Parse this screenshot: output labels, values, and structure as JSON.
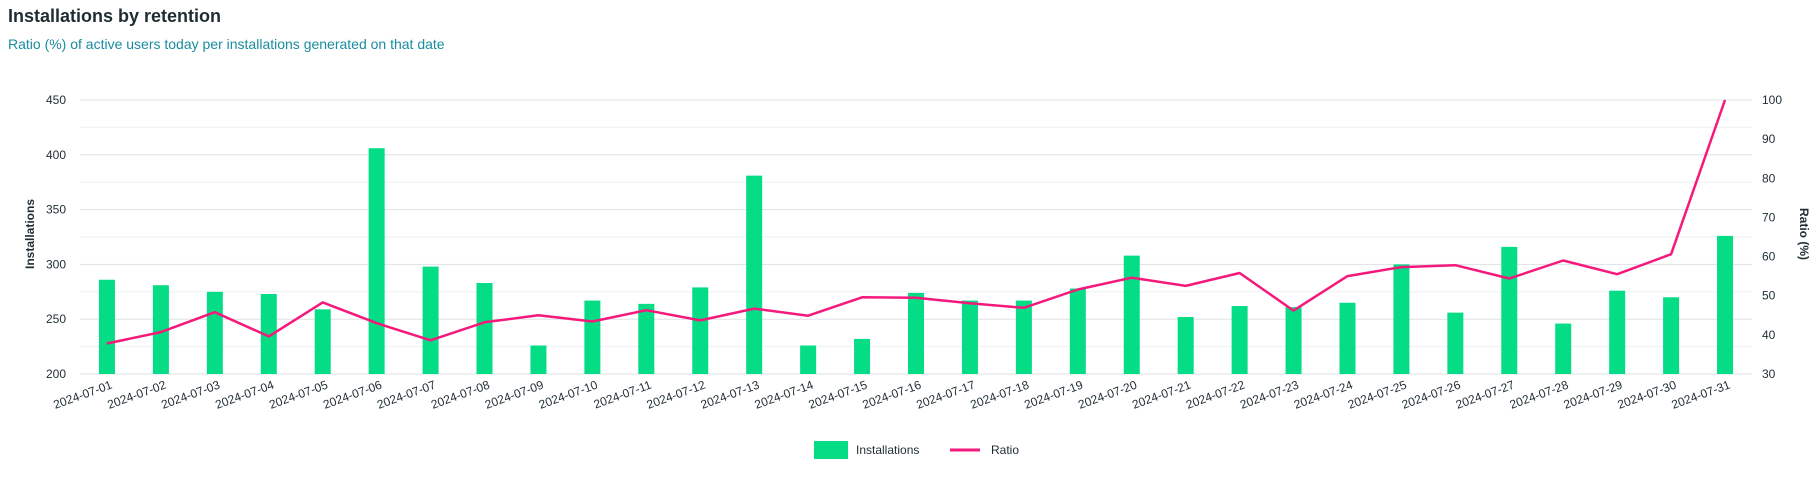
{
  "header": {
    "title": "Installations by retention",
    "subtitle": "Ratio (%) of active users today per installations generated on that date"
  },
  "colors": {
    "bar": "#05dc86",
    "line": "#f5197c",
    "grid": "#e4e7ea"
  },
  "chart_data": {
    "type": "bar",
    "title": "Installations by retention",
    "subtitle": "Ratio (%) of active users today per installations generated on that date",
    "ylabel": "Installations",
    "y2label": "Ratio (%)",
    "ylim": [
      200,
      450
    ],
    "y2lim": [
      30,
      100
    ],
    "yticks": [
      200,
      250,
      300,
      350,
      400,
      450
    ],
    "y2ticks": [
      30,
      40,
      50,
      60,
      70,
      80,
      90,
      100
    ],
    "grid": true,
    "legend_position": "bottom-center",
    "categories": [
      "2024-07-01",
      "2024-07-02",
      "2024-07-03",
      "2024-07-04",
      "2024-07-05",
      "2024-07-06",
      "2024-07-07",
      "2024-07-08",
      "2024-07-09",
      "2024-07-10",
      "2024-07-11",
      "2024-07-12",
      "2024-07-13",
      "2024-07-14",
      "2024-07-15",
      "2024-07-16",
      "2024-07-17",
      "2024-07-18",
      "2024-07-19",
      "2024-07-20",
      "2024-07-21",
      "2024-07-22",
      "2024-07-23",
      "2024-07-24",
      "2024-07-25",
      "2024-07-26",
      "2024-07-27",
      "2024-07-28",
      "2024-07-29",
      "2024-07-30",
      "2024-07-31"
    ],
    "series": [
      {
        "name": "Installations",
        "type": "bar",
        "axis": "left",
        "values": [
          286,
          281,
          275,
          273,
          259,
          406,
          298,
          283,
          226,
          267,
          264,
          279,
          381,
          226,
          232,
          274,
          267,
          267,
          278,
          308,
          252,
          262,
          261,
          265,
          300,
          256,
          316,
          246,
          276,
          270,
          326
        ]
      },
      {
        "name": "Ratio",
        "type": "line",
        "axis": "right",
        "values": [
          37.8,
          40.7,
          45.8,
          39.6,
          48.3,
          43.0,
          38.6,
          43.2,
          45.0,
          43.4,
          46.3,
          43.7,
          46.7,
          44.9,
          49.6,
          49.5,
          48.1,
          46.9,
          51.6,
          54.6,
          52.5,
          55.8,
          46.2,
          55.0,
          57.3,
          57.8,
          54.4,
          59.0,
          55.5,
          60.6,
          100.0
        ]
      }
    ]
  }
}
